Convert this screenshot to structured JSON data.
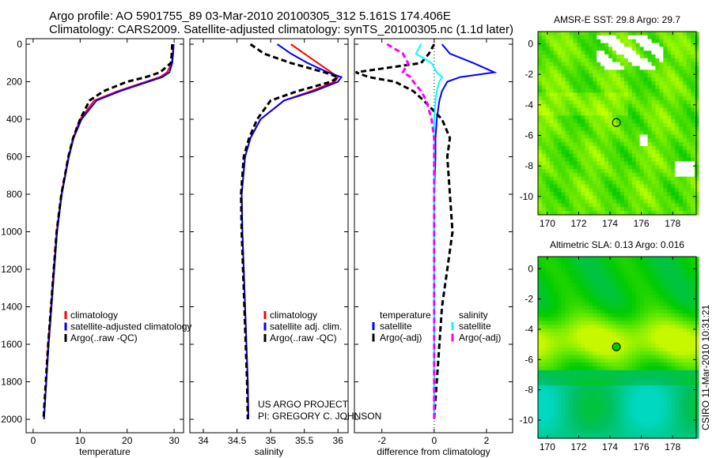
{
  "title_line1": "Argo profile: AO 5901755_89 03-Mar-2010 20100305_312 5.161S 174.406E",
  "title_line2": "Climatology: CARS2009. Satellite-adjusted climatology: synTS_20100305.nc (1.1d later)",
  "credit_line1": "US ARGO PROJECT",
  "credit_line2": "PI: GREGORY C. JOHNSON",
  "stamp": "CSIRO 11-Mar-2010 10:31:21",
  "colors": {
    "clim": "#ff0000",
    "sat": "#0000ff",
    "argo": "#000000",
    "sal_sat": "#00ffff",
    "sal_argo": "#ff00ff"
  },
  "chart_data": [
    {
      "type": "line",
      "name": "temperature",
      "xlabel": "temperature",
      "ylabel": "",
      "xlim": [
        -1.5,
        32
      ],
      "ylim": [
        2050,
        0
      ],
      "xticks": [
        0,
        10,
        20,
        30
      ],
      "yticks": [
        0,
        200,
        400,
        600,
        800,
        1000,
        1200,
        1400,
        1600,
        1800,
        2000
      ],
      "depth": [
        0,
        50,
        100,
        150,
        175,
        200,
        250,
        300,
        400,
        500,
        600,
        800,
        1000,
        1200,
        1400,
        1600,
        1800,
        2000
      ],
      "legend": [
        "climatology",
        "satellite-adjusted climatology",
        "Argo(..raw -QC)"
      ],
      "series": [
        {
          "name": "climatology",
          "style": "clim",
          "values": [
            29.8,
            29.7,
            29.5,
            28.5,
            27,
            24,
            18,
            13,
            10,
            8.5,
            7.5,
            6,
            5,
            4.4,
            3.8,
            3.2,
            2.8,
            2.3
          ]
        },
        {
          "name": "satellite-adjusted climatology",
          "style": "sat",
          "values": [
            29.9,
            29.8,
            29.6,
            29,
            27.5,
            24.5,
            18.5,
            13.5,
            10.3,
            8.6,
            7.6,
            6.1,
            5.1,
            4.5,
            3.9,
            3.3,
            2.8,
            2.3
          ]
        },
        {
          "name": "Argo(..raw -QC)",
          "style": "argo",
          "values": [
            29.6,
            29.5,
            29.3,
            27,
            24,
            20,
            15,
            12,
            10,
            8.5,
            7.5,
            6,
            5,
            4.4,
            3.8,
            3.2,
            2.7,
            2.2
          ]
        }
      ]
    },
    {
      "type": "line",
      "name": "salinity",
      "xlabel": "salinity",
      "xlim": [
        33.8,
        36.15
      ],
      "ylim": [
        2050,
        0
      ],
      "xticks": [
        "34",
        "34.5",
        "35",
        "35.5",
        "36"
      ],
      "depth": [
        0,
        50,
        100,
        150,
        175,
        200,
        250,
        300,
        400,
        500,
        600,
        800,
        1000,
        1200,
        1400,
        1600,
        1800,
        2000
      ],
      "legend": [
        "climatology",
        "satellite adj. clim.",
        "Argo(..raw -QC)"
      ],
      "series": [
        {
          "name": "climatology",
          "style": "clim",
          "values": [
            35.3,
            35.5,
            35.7,
            35.9,
            36.0,
            35.95,
            35.6,
            35.2,
            34.85,
            34.7,
            34.62,
            34.57,
            34.58,
            34.6,
            34.62,
            34.64,
            34.66,
            34.67
          ]
        },
        {
          "name": "satellite adj. clim.",
          "style": "sat",
          "values": [
            35.1,
            35.3,
            35.55,
            35.85,
            36.05,
            36.0,
            35.65,
            35.2,
            34.85,
            34.7,
            34.62,
            34.57,
            34.58,
            34.6,
            34.62,
            34.64,
            34.66,
            34.67
          ]
        },
        {
          "name": "Argo(..raw -QC)",
          "style": "argo",
          "values": [
            34.7,
            34.9,
            35.3,
            35.8,
            36.0,
            35.9,
            35.4,
            35.0,
            34.8,
            34.68,
            34.6,
            34.56,
            34.57,
            34.59,
            34.61,
            34.63,
            34.65,
            34.66
          ]
        }
      ]
    },
    {
      "type": "line",
      "name": "difference",
      "xlabel": "difference from climatology",
      "xlim": [
        -3.05,
        3
      ],
      "ylim": [
        2050,
        0
      ],
      "xticks": [
        -2,
        0,
        2
      ],
      "depth": [
        0,
        50,
        100,
        150,
        175,
        200,
        250,
        300,
        400,
        500,
        600,
        800,
        1000,
        1200,
        1400,
        1600,
        1800,
        2000
      ],
      "legend_headers": [
        "temperature",
        "salinity"
      ],
      "legend": [
        "satellite",
        "Argo(-adj)",
        "satellite",
        "Argo(-adj)"
      ],
      "series": [
        {
          "name": "temperature satellite",
          "style": "sat",
          "values": [
            0.3,
            0.6,
            1.5,
            2.3,
            1.0,
            0.5,
            0.3,
            0.2,
            0.1,
            0.05,
            0.05,
            0,
            0,
            0,
            0,
            0,
            0,
            0
          ]
        },
        {
          "name": "temperature Argo(-adj)",
          "style": "argo",
          "values": [
            0,
            -0.2,
            -0.5,
            -3,
            -2.5,
            -1.5,
            -0.8,
            -0.4,
            0.3,
            0.6,
            0.5,
            0.6,
            0.7,
            0.5,
            0.3,
            0.2,
            0.1,
            0
          ]
        },
        {
          "name": "salinity satellite",
          "style": "sal_sat",
          "values": [
            -0.5,
            -0.7,
            -0.1,
            0.1,
            0.3,
            0.2,
            0.1,
            0.05,
            0,
            0,
            0,
            0,
            0,
            0,
            0,
            0,
            0,
            0
          ]
        },
        {
          "name": "salinity Argo(-adj)",
          "style": "sal_argo",
          "values": [
            -1.8,
            -1.2,
            -1.0,
            -1.2,
            -0.9,
            -0.8,
            -0.5,
            -0.3,
            -0.1,
            0,
            0,
            0,
            0,
            0,
            0,
            0,
            0,
            0
          ]
        }
      ]
    },
    {
      "type": "heatmap",
      "name": "sst-map",
      "title": "AMSR-E SST: 29.8 Argo: 29.7",
      "xlim": [
        169.4,
        179.5
      ],
      "ylim": [
        -11.2,
        0.8
      ],
      "xticks": [
        170,
        172,
        174,
        176,
        178
      ],
      "yticks": [
        0,
        -2,
        -4,
        -6,
        -8,
        -10
      ],
      "marker": [
        174.406,
        -5.161
      ],
      "palette": [
        "#00c800",
        "#40dc00",
        "#80f000",
        "#c0ff00"
      ]
    },
    {
      "type": "heatmap",
      "name": "sla-map",
      "title": "Altimetric SLA: 0.13 Argo: 0.016",
      "xlim": [
        169.4,
        179.5
      ],
      "ylim": [
        -11.2,
        0.8
      ],
      "xticks": [
        170,
        172,
        174,
        176,
        178
      ],
      "yticks": [
        0,
        -2,
        -4,
        -6,
        -8,
        -10
      ],
      "marker": [
        174.406,
        -5.161
      ],
      "palette": [
        "#00d8c0",
        "#00c060",
        "#00cc00",
        "#60e800",
        "#c8f800"
      ]
    }
  ]
}
